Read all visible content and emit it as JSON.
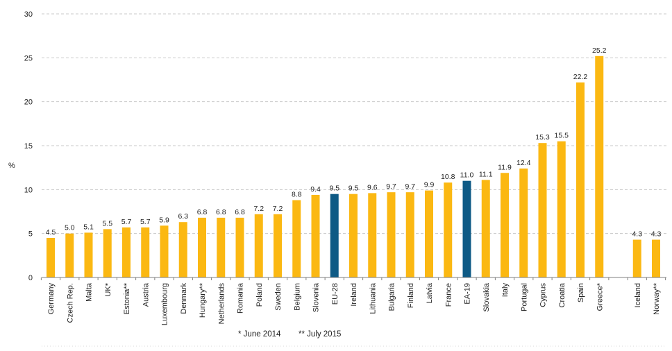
{
  "chart_data": {
    "type": "bar",
    "title": "",
    "xlabel": "",
    "ylabel": "%",
    "ylim": [
      0,
      30
    ],
    "yticks": [
      0,
      5,
      10,
      15,
      20,
      25,
      30
    ],
    "grid": true,
    "categories": [
      "Germany",
      "Czech Rep.",
      "Malta",
      "UK*",
      "Estonia**",
      "Austria",
      "Luxembourg",
      "Denmark",
      "Hungary**",
      "Netherlands",
      "Romania",
      "Poland",
      "Sweden",
      "Belgium",
      "Slovenia",
      "EU-28",
      "Ireland",
      "Lithuania",
      "Bulgaria",
      "Finland",
      "Latvia",
      "France",
      "EA-19",
      "Slovakia",
      "Italy",
      "Portugal",
      "Cyprus",
      "Croatia",
      "Spain",
      "Greece*",
      "",
      "Iceland",
      "Norway**"
    ],
    "values": [
      4.5,
      5.0,
      5.1,
      5.5,
      5.7,
      5.7,
      5.9,
      6.3,
      6.8,
      6.8,
      6.8,
      7.2,
      7.2,
      8.8,
      9.4,
      9.5,
      9.5,
      9.6,
      9.7,
      9.7,
      9.9,
      10.8,
      11.0,
      11.1,
      11.9,
      12.4,
      15.3,
      15.5,
      22.2,
      25.2,
      null,
      4.3,
      4.3
    ],
    "value_labels": [
      "4.5",
      "5.0",
      "5.1",
      "5.5",
      "5.7",
      "5.7",
      "5.9",
      "6.3",
      "6.8",
      "6.8",
      "6.8",
      "7.2",
      "7.2",
      "8.8",
      "9.4",
      "9.5",
      "9.5",
      "9.6",
      "9.7",
      "9.7",
      "9.9",
      "10.8",
      "11.0",
      "11.1",
      "11.9",
      "12.4",
      "15.3",
      "15.5",
      "22.2",
      "25.2",
      "",
      "4.3",
      "4.3"
    ],
    "highlight": [
      "EU-28",
      "EA-19"
    ],
    "colors": {
      "default": "#fbb812",
      "highlight": "#0e5a85",
      "grid": "#c8c8c8",
      "axis": "#7f7f7f"
    },
    "footnotes": [
      "*  June 2014",
      "** July 2015"
    ]
  }
}
